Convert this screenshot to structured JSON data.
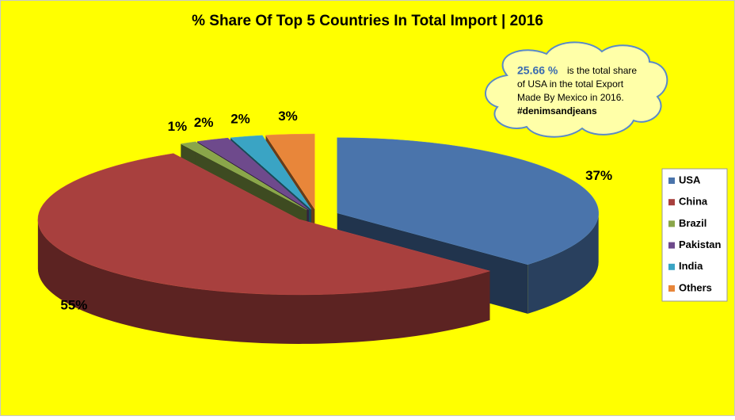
{
  "chart_data": {
    "type": "pie3d",
    "title": "% Share Of Top 5 Countries In Total Import | 2016",
    "categories": [
      "USA",
      "China",
      "Brazil",
      "Pakistan",
      "India",
      "Others"
    ],
    "values": [
      37,
      55,
      1,
      2,
      2,
      3
    ],
    "value_labels": [
      "37%",
      "55%",
      "1%",
      "2%",
      "2%",
      "3%"
    ],
    "colors": [
      "#4a74ab",
      "#a8403e",
      "#8aa64a",
      "#6e4a8c",
      "#3aa4c4",
      "#e8863a"
    ],
    "legend": "right",
    "annotation": {
      "highlight": "25.66 %",
      "lines": [
        "is the total share",
        "of USA in the total Export",
        "Made By Mexico in 2016.",
        "#denimsandjeans"
      ]
    }
  }
}
